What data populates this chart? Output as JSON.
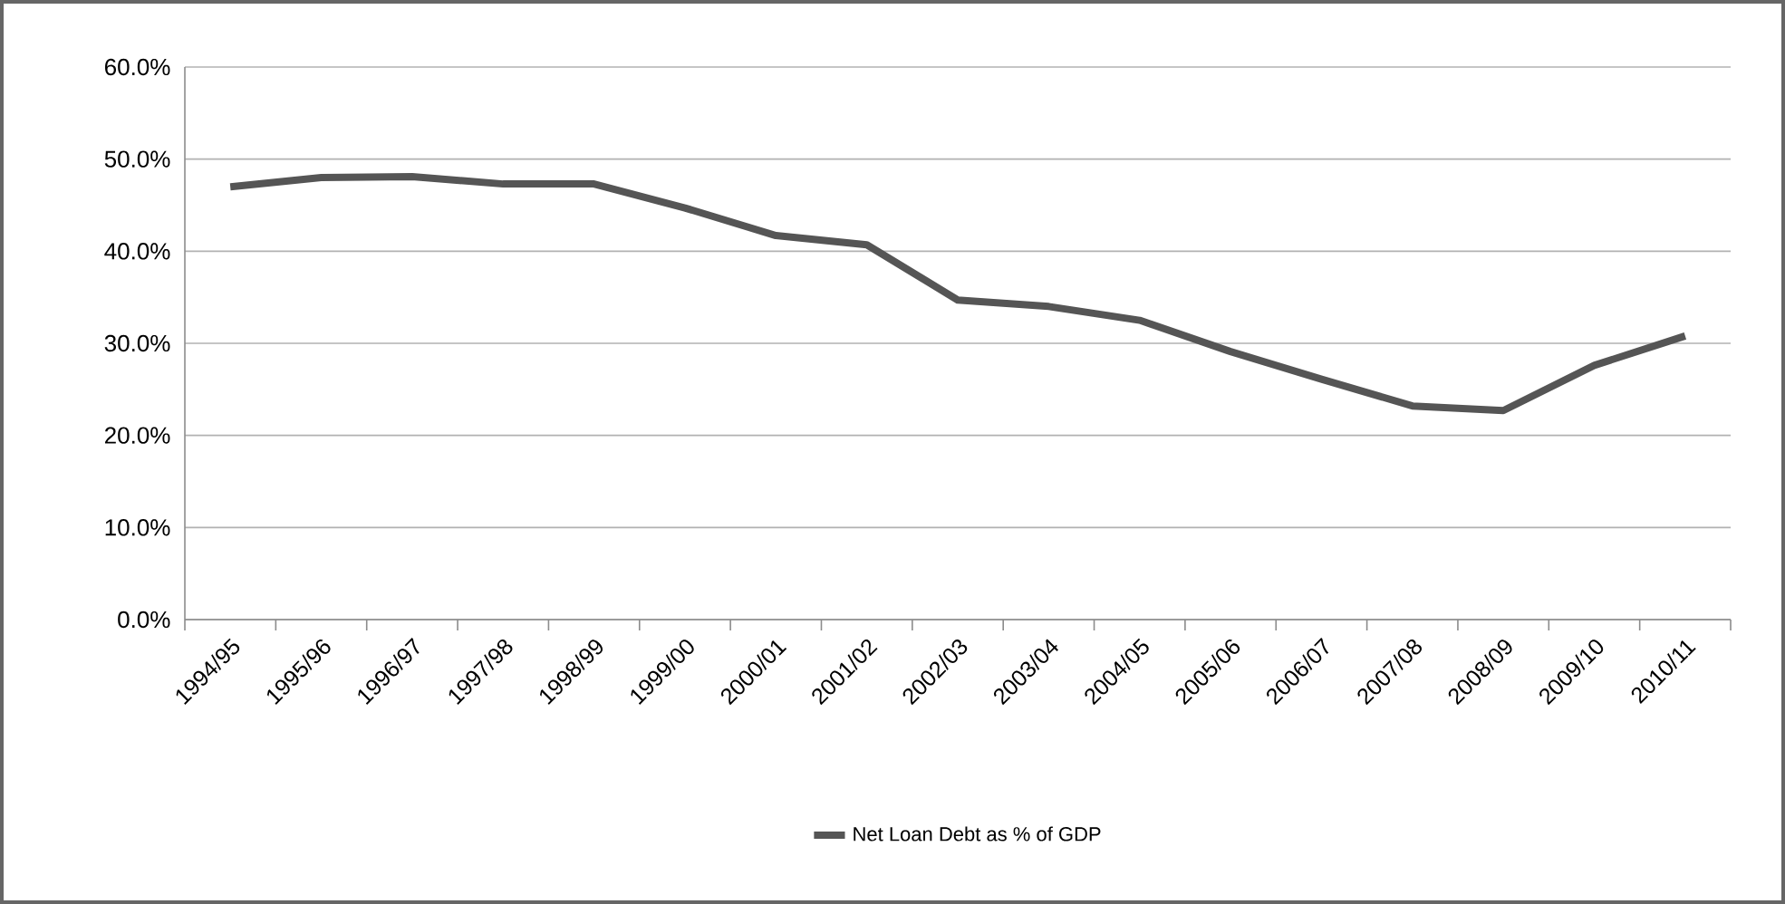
{
  "chart_data": {
    "type": "line",
    "categories": [
      "1994/95",
      "1995/96",
      "1996/97",
      "1997/98",
      "1998/99",
      "1999/00",
      "2000/01",
      "2001/02",
      "2002/03",
      "2003/04",
      "2004/05",
      "2005/06",
      "2006/07",
      "2007/08",
      "2008/09",
      "2009/10",
      "2010/11"
    ],
    "series": [
      {
        "name": "Net Loan Debt as % of GDP",
        "color": "#555555",
        "values": [
          47.0,
          48.0,
          48.1,
          47.3,
          47.3,
          44.7,
          41.7,
          40.7,
          34.7,
          34.0,
          32.5,
          29.1,
          26.1,
          23.2,
          22.7,
          27.6,
          30.8
        ]
      }
    ],
    "ylim": [
      0,
      60
    ],
    "yticks": [
      {
        "value": 0,
        "label": "0.0%"
      },
      {
        "value": 10,
        "label": "10.0%"
      },
      {
        "value": 20,
        "label": "20.0%"
      },
      {
        "value": 30,
        "label": "30.0%"
      },
      {
        "value": 40,
        "label": "40.0%"
      },
      {
        "value": 50,
        "label": "50.0%"
      },
      {
        "value": 60,
        "label": "60.0%"
      }
    ],
    "grid": "y",
    "legend": "bottom",
    "marker": "none",
    "line_style": "solid"
  }
}
